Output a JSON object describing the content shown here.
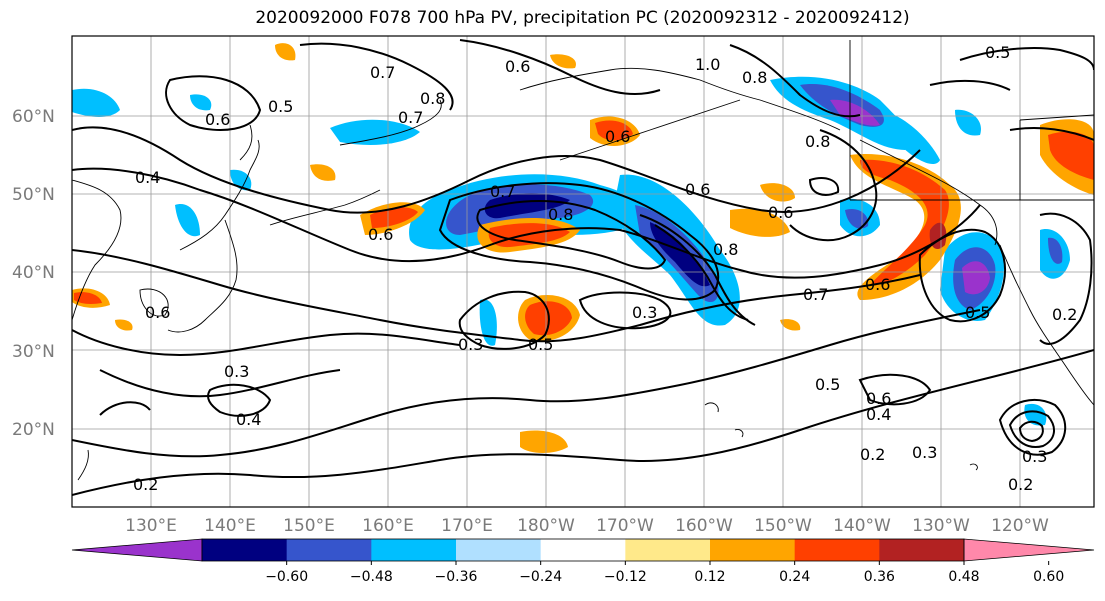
{
  "title": "2020092000 F078 700 hPa PV, precipitation PC (2020092312 - 2020092412)",
  "map": {
    "lat_labels": [
      "60°N",
      "50°N",
      "40°N",
      "30°N",
      "20°N"
    ],
    "lon_labels": [
      "130°E",
      "140°E",
      "150°E",
      "160°E",
      "170°E",
      "180°W",
      "170°W",
      "160°W",
      "150°W",
      "140°W",
      "130°W",
      "120°W"
    ],
    "contour_labels": [
      "0.7",
      "0.6",
      "0.5",
      "0.6",
      "0.8",
      "0.7",
      "0.6",
      "1.0",
      "0.8",
      "0.5",
      "0.8",
      "0.4",
      "0.6",
      "0.8",
      "0.8",
      "0.6",
      "0.7",
      "0.6",
      "0.6",
      "0.3",
      "0.5",
      "0.3",
      "0.7",
      "0.6",
      "0.5",
      "0.3",
      "0.4",
      "0.2",
      "0.5",
      "0.6",
      "0.4",
      "0.2",
      "0.3",
      "0.3",
      "0.2",
      "0.2"
    ]
  },
  "colorbar": {
    "ticks": [
      "−0.60",
      "−0.48",
      "−0.36",
      "−0.24",
      "−0.12",
      "0.12",
      "0.24",
      "0.36",
      "0.48",
      "0.60"
    ],
    "colors": [
      "#9a33cc",
      "#000080",
      "#3655cc",
      "#00bfff",
      "#b0e0ff",
      "#ffffff",
      "#ffe98a",
      "#ffa500",
      "#ff4000",
      "#b22222",
      "#ff88aa"
    ]
  }
}
